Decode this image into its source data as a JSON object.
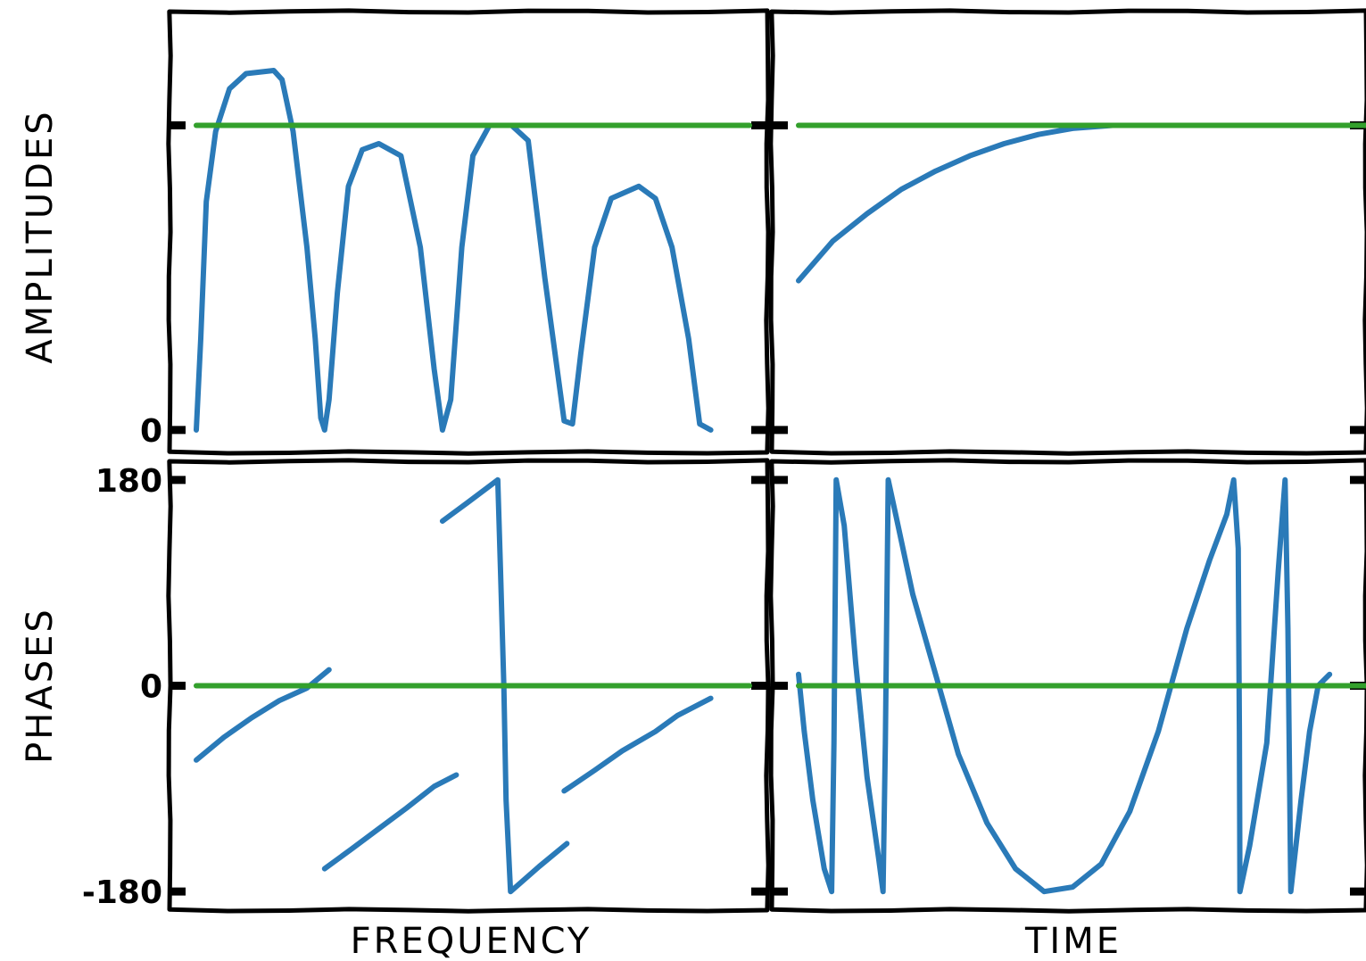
{
  "colors": {
    "response": "#2a7ab8",
    "reference": "#33a02c",
    "axes": "#000000"
  },
  "figure": {
    "xlabel_left": "FREQUENCY",
    "xlabel_right": "TIME",
    "ylabel_top": "AMPLITUDES",
    "ylabel_bottom": "PHASES"
  },
  "chart_data": [
    {
      "id": "amp-freq",
      "type": "line",
      "xlabel": "",
      "ylabel": "AMPLITUDES",
      "xlim": [
        0,
        1
      ],
      "ylim": [
        -0.05,
        1.35
      ],
      "yticks": [
        0,
        1
      ],
      "ytick_labels": [
        "0",
        ""
      ],
      "series": [
        {
          "color_key": "response",
          "segments": [
            [
              [
                0.0,
                0.0
              ],
              [
                0.008,
                0.3
              ],
              [
                0.018,
                0.75
              ],
              [
                0.035,
                0.98
              ],
              [
                0.06,
                1.12
              ],
              [
                0.09,
                1.17
              ],
              [
                0.14,
                1.18
              ],
              [
                0.155,
                1.15
              ],
              [
                0.175,
                0.98
              ],
              [
                0.2,
                0.6
              ],
              [
                0.215,
                0.3
              ],
              [
                0.225,
                0.04
              ],
              [
                0.232,
                0.0
              ],
              [
                0.24,
                0.1
              ],
              [
                0.255,
                0.45
              ],
              [
                0.275,
                0.8
              ],
              [
                0.3,
                0.92
              ],
              [
                0.33,
                0.94
              ],
              [
                0.37,
                0.9
              ],
              [
                0.405,
                0.6
              ],
              [
                0.43,
                0.2
              ],
              [
                0.445,
                0.0
              ],
              [
                0.46,
                0.1
              ],
              [
                0.48,
                0.6
              ],
              [
                0.5,
                0.9
              ],
              [
                0.53,
                1.0
              ],
              [
                0.57,
                1.0
              ],
              [
                0.6,
                0.95
              ],
              [
                0.63,
                0.5
              ],
              [
                0.665,
                0.03
              ],
              [
                0.68,
                0.02
              ],
              [
                0.695,
                0.25
              ],
              [
                0.72,
                0.6
              ],
              [
                0.75,
                0.76
              ],
              [
                0.8,
                0.8
              ],
              [
                0.83,
                0.76
              ],
              [
                0.86,
                0.6
              ],
              [
                0.89,
                0.3
              ],
              [
                0.91,
                0.02
              ],
              [
                0.93,
                0.0
              ]
            ]
          ]
        },
        {
          "color_key": "reference",
          "segments": [
            [
              [
                0.0,
                1.0
              ],
              [
                1.0,
                1.0
              ]
            ]
          ]
        }
      ]
    },
    {
      "id": "amp-time",
      "type": "line",
      "xlabel": "",
      "ylabel": "",
      "xlim": [
        0,
        1
      ],
      "ylim": [
        -0.05,
        1.35
      ],
      "yticks": [
        0,
        1
      ],
      "ytick_labels": [
        "",
        ""
      ],
      "series": [
        {
          "color_key": "response",
          "segments": [
            [
              [
                0.0,
                0.49
              ],
              [
                0.06,
                0.62
              ],
              [
                0.12,
                0.71
              ],
              [
                0.18,
                0.79
              ],
              [
                0.24,
                0.85
              ],
              [
                0.3,
                0.9
              ],
              [
                0.36,
                0.94
              ],
              [
                0.42,
                0.97
              ],
              [
                0.48,
                0.99
              ],
              [
                0.55,
                1.0
              ]
            ]
          ]
        },
        {
          "color_key": "reference",
          "segments": [
            [
              [
                0.0,
                1.0
              ],
              [
                1.0,
                1.0
              ]
            ]
          ]
        }
      ]
    },
    {
      "id": "phase-freq",
      "type": "line",
      "xlabel": "FREQUENCY",
      "ylabel": "PHASES",
      "xlim": [
        0,
        1
      ],
      "ylim": [
        -190,
        190
      ],
      "yticks": [
        -180,
        0,
        180
      ],
      "ytick_labels": [
        "-180",
        "0",
        "180"
      ],
      "series": [
        {
          "color_key": "response",
          "segments": [
            [
              [
                0.0,
                -65
              ],
              [
                0.05,
                -45
              ],
              [
                0.1,
                -28
              ],
              [
                0.15,
                -13
              ],
              [
                0.2,
                -2
              ],
              [
                0.24,
                14
              ]
            ],
            [
              [
                0.232,
                -160
              ],
              [
                0.28,
                -143
              ],
              [
                0.33,
                -125
              ],
              [
                0.38,
                -107
              ],
              [
                0.43,
                -88
              ],
              [
                0.47,
                -78
              ]
            ],
            [
              [
                0.445,
                144
              ],
              [
                0.49,
                160
              ],
              [
                0.545,
                180
              ],
              [
                0.55,
                100
              ],
              [
                0.556,
                0
              ],
              [
                0.56,
                -100
              ],
              [
                0.568,
                -180
              ],
              [
                0.62,
                -158
              ],
              [
                0.67,
                -138
              ]
            ],
            [
              [
                0.665,
                -92
              ],
              [
                0.72,
                -74
              ],
              [
                0.77,
                -57
              ],
              [
                0.83,
                -40
              ],
              [
                0.87,
                -26
              ],
              [
                0.93,
                -11
              ]
            ]
          ]
        },
        {
          "color_key": "reference",
          "segments": [
            [
              [
                0.0,
                0.0
              ],
              [
                1.0,
                0.0
              ]
            ]
          ]
        }
      ]
    },
    {
      "id": "phase-time",
      "type": "line",
      "xlabel": "TIME",
      "ylabel": "",
      "xlim": [
        0,
        1
      ],
      "ylim": [
        -190,
        190
      ],
      "yticks": [
        -180,
        0,
        180
      ],
      "ytick_labels": [
        "",
        "",
        ""
      ],
      "series": [
        {
          "color_key": "response",
          "segments": [
            [
              [
                0.0,
                10
              ],
              [
                0.01,
                -40
              ],
              [
                0.025,
                -100
              ],
              [
                0.045,
                -160
              ],
              [
                0.058,
                -180
              ],
              [
                0.062,
                -50
              ],
              [
                0.066,
                180
              ],
              [
                0.08,
                140
              ],
              [
                0.1,
                20
              ],
              [
                0.12,
                -80
              ],
              [
                0.14,
                -150
              ],
              [
                0.148,
                -180
              ],
              [
                0.152,
                -50
              ],
              [
                0.157,
                180
              ],
              [
                0.17,
                150
              ],
              [
                0.2,
                80
              ],
              [
                0.24,
                10
              ],
              [
                0.28,
                -60
              ],
              [
                0.33,
                -120
              ],
              [
                0.38,
                -160
              ],
              [
                0.43,
                -180
              ],
              [
                0.48,
                -176
              ],
              [
                0.53,
                -156
              ],
              [
                0.58,
                -110
              ],
              [
                0.63,
                -40
              ],
              [
                0.68,
                50
              ],
              [
                0.72,
                110
              ],
              [
                0.75,
                150
              ],
              [
                0.762,
                180
              ],
              [
                0.77,
                120
              ],
              [
                0.772,
                -40
              ],
              [
                0.773,
                -180
              ],
              [
                0.79,
                -140
              ],
              [
                0.82,
                -50
              ],
              [
                0.84,
                100
              ],
              [
                0.852,
                180
              ],
              [
                0.857,
                50
              ],
              [
                0.862,
                -180
              ],
              [
                0.88,
                -100
              ],
              [
                0.895,
                -40
              ],
              [
                0.91,
                0
              ],
              [
                0.93,
                10
              ]
            ]
          ]
        },
        {
          "color_key": "reference",
          "segments": [
            [
              [
                0.0,
                0.0
              ],
              [
                1.0,
                0.0
              ]
            ]
          ]
        }
      ]
    }
  ]
}
